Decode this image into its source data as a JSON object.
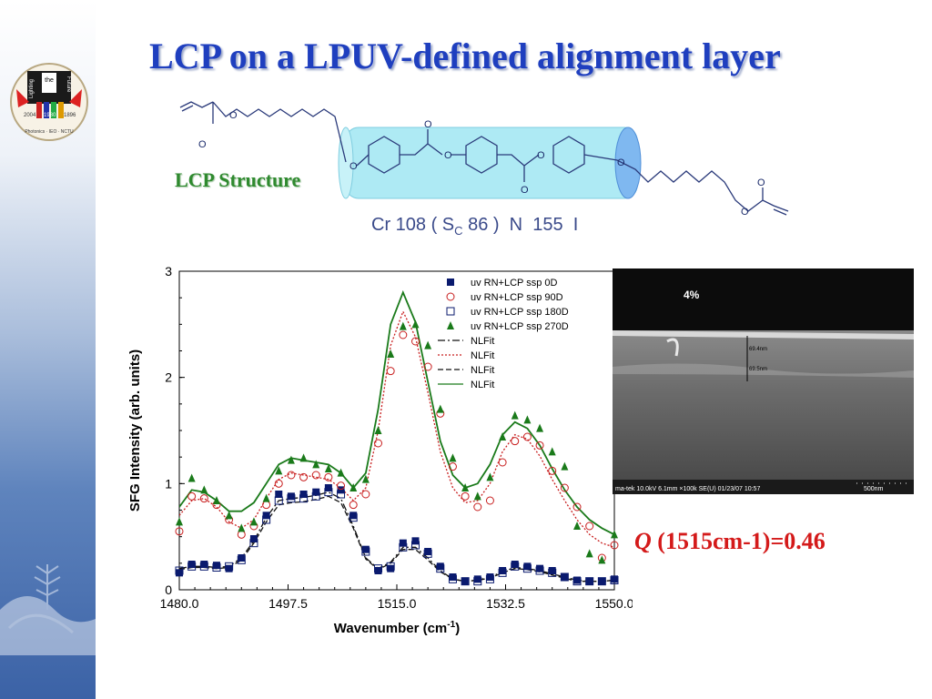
{
  "slide": {
    "title": "LCP on a LPUV-defined alignment layer",
    "structure_label": "LCP Structure",
    "phase_parts": [
      "Cr 108 ( S",
      "C",
      " 86 )  N  155  I"
    ],
    "q_symbol": "Q",
    "q_rest": " (1515cm-1)=0.46"
  },
  "logo": {
    "top_word": "the",
    "left_word": "Lighting",
    "right_word": "Future",
    "years": [
      "2004",
      "1980",
      "1896"
    ],
    "ring_text": "Photonics · IEO · NCTU"
  },
  "sem": {
    "label": "4%",
    "measure_top": "69.4nm",
    "measure_bottom": "69.5nm",
    "footer_left": "ma-tek 10.0kV 6.1mm ×100k SE(U) 01/23/07 10:57",
    "footer_right": "500nm"
  },
  "structure": {
    "carbonyl_labels": [
      "O",
      "O",
      "O",
      "O"
    ],
    "ether_labels": [
      "O",
      "O",
      "O",
      "O",
      "O",
      "O"
    ]
  },
  "colors": {
    "title": "#1f3fbf",
    "label_green": "#2f8a2f",
    "q_red": "#d41a1a",
    "navy": "#0a1a6e",
    "red": "#c81e1e",
    "green": "#1a7a1a"
  },
  "chart_data": {
    "type": "scatter",
    "xlabel": "Wavenumber (cm-1)",
    "ylabel": "SFG Intensity (arb. units)",
    "xlim": [
      1480,
      1550
    ],
    "ylim": [
      0,
      3
    ],
    "xticks": [
      "1480.0",
      "1497.5",
      "1515.0",
      "1532.5",
      "1550.0"
    ],
    "yticks": [
      "0",
      "1",
      "2",
      "3"
    ],
    "legend_position": "top-right",
    "series": [
      {
        "name": "uv RN+LCP  ssp 0D",
        "marker": "filled-square",
        "color": "#0a1a6e",
        "x": [
          1480,
          1482,
          1484,
          1486,
          1488,
          1490,
          1492,
          1494,
          1496,
          1498,
          1500,
          1502,
          1504,
          1506,
          1508,
          1510,
          1512,
          1514,
          1516,
          1518,
          1520,
          1522,
          1524,
          1526,
          1528,
          1530,
          1532,
          1534,
          1536,
          1538,
          1540,
          1542,
          1544,
          1546,
          1548,
          1550
        ],
        "y": [
          0.16,
          0.24,
          0.24,
          0.23,
          0.2,
          0.3,
          0.48,
          0.7,
          0.9,
          0.88,
          0.9,
          0.92,
          0.96,
          0.94,
          0.7,
          0.38,
          0.18,
          0.2,
          0.44,
          0.46,
          0.36,
          0.22,
          0.12,
          0.08,
          0.1,
          0.12,
          0.18,
          0.24,
          0.22,
          0.2,
          0.18,
          0.12,
          0.09,
          0.08,
          0.08,
          0.1
        ]
      },
      {
        "name": "uv RN+LCP ssp 90D",
        "marker": "open-circle",
        "color": "#c81e1e",
        "x": [
          1480,
          1482,
          1484,
          1486,
          1488,
          1490,
          1492,
          1494,
          1496,
          1498,
          1500,
          1502,
          1504,
          1506,
          1508,
          1510,
          1512,
          1514,
          1516,
          1518,
          1520,
          1522,
          1524,
          1526,
          1528,
          1530,
          1532,
          1534,
          1536,
          1538,
          1540,
          1542,
          1544,
          1546,
          1548,
          1550
        ],
        "y": [
          0.55,
          0.88,
          0.86,
          0.8,
          0.66,
          0.52,
          0.6,
          0.8,
          1.0,
          1.08,
          1.06,
          1.08,
          1.06,
          0.98,
          0.8,
          0.9,
          1.38,
          2.06,
          2.4,
          2.34,
          2.1,
          1.66,
          1.16,
          0.88,
          0.78,
          0.84,
          1.2,
          1.4,
          1.44,
          1.36,
          1.12,
          0.96,
          0.78,
          0.6,
          0.3,
          0.42
        ]
      },
      {
        "name": "uv RN+LCP ssp 180D",
        "marker": "open-square",
        "color": "#0a1a6e",
        "x": [
          1480,
          1482,
          1484,
          1486,
          1488,
          1490,
          1492,
          1494,
          1496,
          1498,
          1500,
          1502,
          1504,
          1506,
          1508,
          1510,
          1512,
          1514,
          1516,
          1518,
          1520,
          1522,
          1524,
          1526,
          1528,
          1530,
          1532,
          1534,
          1536,
          1538,
          1540,
          1542,
          1544,
          1546,
          1548,
          1550
        ],
        "y": [
          0.18,
          0.22,
          0.22,
          0.21,
          0.22,
          0.28,
          0.44,
          0.66,
          0.84,
          0.86,
          0.86,
          0.88,
          0.92,
          0.9,
          0.68,
          0.36,
          0.2,
          0.22,
          0.4,
          0.42,
          0.34,
          0.2,
          0.1,
          0.08,
          0.08,
          0.1,
          0.16,
          0.22,
          0.2,
          0.18,
          0.16,
          0.12,
          0.08,
          0.08,
          0.08,
          0.09
        ]
      },
      {
        "name": "uv RN+LCP ssp 270D",
        "marker": "filled-triangle",
        "color": "#1a7a1a",
        "x": [
          1480,
          1482,
          1484,
          1486,
          1488,
          1490,
          1492,
          1494,
          1496,
          1498,
          1500,
          1502,
          1504,
          1506,
          1508,
          1510,
          1512,
          1514,
          1516,
          1518,
          1520,
          1522,
          1524,
          1526,
          1528,
          1530,
          1532,
          1534,
          1536,
          1538,
          1540,
          1542,
          1544,
          1546,
          1548,
          1550
        ],
        "y": [
          0.64,
          1.05,
          0.94,
          0.84,
          0.7,
          0.58,
          0.64,
          0.86,
          1.12,
          1.22,
          1.24,
          1.18,
          1.14,
          1.1,
          0.96,
          1.04,
          1.5,
          2.22,
          2.48,
          2.5,
          2.3,
          1.7,
          1.24,
          0.96,
          0.88,
          1.06,
          1.44,
          1.64,
          1.6,
          1.52,
          1.3,
          1.16,
          0.6,
          0.34,
          0.28,
          0.52
        ]
      },
      {
        "name": "NLFit",
        "line": "dash-dot",
        "color": "#111111",
        "x": [
          1480,
          1482,
          1484,
          1486,
          1488,
          1490,
          1492,
          1494,
          1496,
          1498,
          1500,
          1502,
          1504,
          1506,
          1508,
          1510,
          1512,
          1514,
          1516,
          1518,
          1520,
          1522,
          1524,
          1526,
          1528,
          1530,
          1532,
          1534,
          1536,
          1538,
          1540,
          1542,
          1544,
          1546,
          1548,
          1550
        ],
        "y": [
          0.2,
          0.22,
          0.22,
          0.21,
          0.22,
          0.3,
          0.46,
          0.68,
          0.84,
          0.86,
          0.87,
          0.89,
          0.92,
          0.86,
          0.6,
          0.3,
          0.2,
          0.26,
          0.4,
          0.4,
          0.3,
          0.18,
          0.1,
          0.08,
          0.09,
          0.12,
          0.17,
          0.21,
          0.2,
          0.18,
          0.15,
          0.12,
          0.09,
          0.08,
          0.08,
          0.09
        ]
      },
      {
        "name": "NLFit",
        "line": "dotted",
        "color": "#c81e1e",
        "x": [
          1480,
          1482,
          1484,
          1486,
          1488,
          1490,
          1492,
          1494,
          1496,
          1498,
          1500,
          1502,
          1504,
          1506,
          1508,
          1510,
          1512,
          1514,
          1516,
          1518,
          1520,
          1522,
          1524,
          1526,
          1528,
          1530,
          1532,
          1534,
          1536,
          1538,
          1540,
          1542,
          1544,
          1546,
          1548,
          1550
        ],
        "y": [
          0.7,
          0.84,
          0.86,
          0.78,
          0.64,
          0.58,
          0.66,
          0.86,
          1.04,
          1.1,
          1.08,
          1.06,
          1.04,
          0.96,
          0.84,
          0.96,
          1.5,
          2.3,
          2.62,
          2.38,
          1.86,
          1.3,
          0.96,
          0.82,
          0.84,
          1.0,
          1.3,
          1.46,
          1.42,
          1.26,
          1.04,
          0.84,
          0.66,
          0.52,
          0.44,
          0.4
        ]
      },
      {
        "name": "NLFit",
        "line": "dashed",
        "color": "#111111",
        "x": [
          1480,
          1482,
          1484,
          1486,
          1488,
          1490,
          1492,
          1494,
          1496,
          1498,
          1500,
          1502,
          1504,
          1506,
          1508,
          1510,
          1512,
          1514,
          1516,
          1518,
          1520,
          1522,
          1524,
          1526,
          1528,
          1530,
          1532,
          1534,
          1536,
          1538,
          1540,
          1542,
          1544,
          1546,
          1548,
          1550
        ],
        "y": [
          0.19,
          0.21,
          0.21,
          0.2,
          0.21,
          0.28,
          0.44,
          0.64,
          0.8,
          0.82,
          0.83,
          0.85,
          0.88,
          0.82,
          0.58,
          0.29,
          0.19,
          0.25,
          0.38,
          0.38,
          0.28,
          0.17,
          0.1,
          0.08,
          0.09,
          0.11,
          0.16,
          0.2,
          0.19,
          0.17,
          0.14,
          0.11,
          0.08,
          0.08,
          0.08,
          0.09
        ]
      },
      {
        "name": "NLFit",
        "line": "solid",
        "color": "#1a7a1a",
        "x": [
          1480,
          1482,
          1484,
          1486,
          1488,
          1490,
          1492,
          1494,
          1496,
          1498,
          1500,
          1502,
          1504,
          1506,
          1508,
          1510,
          1512,
          1514,
          1516,
          1518,
          1520,
          1522,
          1524,
          1526,
          1528,
          1530,
          1532,
          1534,
          1536,
          1538,
          1540,
          1542,
          1544,
          1546,
          1548,
          1550
        ],
        "y": [
          0.78,
          0.94,
          0.92,
          0.84,
          0.74,
          0.74,
          0.82,
          1.0,
          1.18,
          1.24,
          1.22,
          1.2,
          1.18,
          1.1,
          0.96,
          1.1,
          1.7,
          2.5,
          2.8,
          2.52,
          1.96,
          1.4,
          1.08,
          0.96,
          1.0,
          1.18,
          1.46,
          1.58,
          1.52,
          1.36,
          1.14,
          0.94,
          0.78,
          0.66,
          0.58,
          0.52
        ]
      }
    ]
  }
}
